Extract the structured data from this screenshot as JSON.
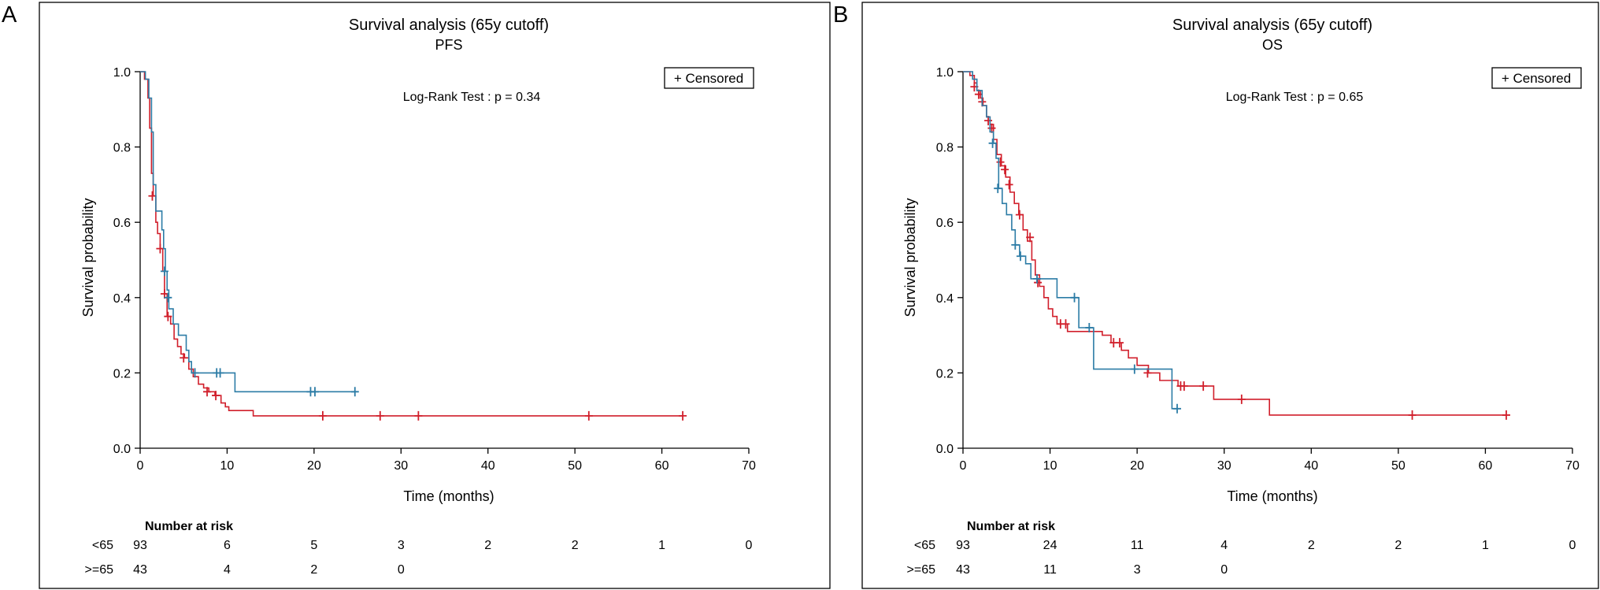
{
  "colors": {
    "under65": "#d11f2b",
    "over65": "#2c7ca6",
    "axis": "#000000"
  },
  "chart_data": [
    {
      "panel_letter": "A",
      "type": "line",
      "title": "Survival analysis (65y cutoff)",
      "subtitle": "PFS",
      "xlabel": "Time (months)",
      "ylabel": "Survival probability",
      "xlim": [
        0,
        70
      ],
      "ylim": [
        0,
        1
      ],
      "xticks": [
        "0",
        "10",
        "20",
        "30",
        "40",
        "50",
        "60",
        "70"
      ],
      "yticks": [
        "0.0",
        "0.2",
        "0.4",
        "0.6",
        "0.8",
        "1.0"
      ],
      "legend": "+ Censored",
      "annotation": "Log-Rank Test : p = 0.34",
      "series": [
        {
          "name": "<65",
          "color": "#d11f2b",
          "steps": [
            [
              0,
              1.0
            ],
            [
              0.5,
              0.98
            ],
            [
              0.9,
              0.93
            ],
            [
              1.1,
              0.85
            ],
            [
              1.3,
              0.73
            ],
            [
              1.5,
              0.67
            ],
            [
              1.8,
              0.6
            ],
            [
              2.0,
              0.57
            ],
            [
              2.3,
              0.53
            ],
            [
              2.6,
              0.47
            ],
            [
              2.8,
              0.41
            ],
            [
              3.1,
              0.35
            ],
            [
              3.5,
              0.33
            ],
            [
              3.9,
              0.29
            ],
            [
              4.3,
              0.27
            ],
            [
              4.7,
              0.25
            ],
            [
              5.1,
              0.24
            ],
            [
              5.6,
              0.21
            ],
            [
              6.1,
              0.19
            ],
            [
              6.7,
              0.17
            ],
            [
              7.3,
              0.16
            ],
            [
              7.9,
              0.15
            ],
            [
              8.6,
              0.14
            ],
            [
              9.3,
              0.12
            ],
            [
              9.8,
              0.11
            ],
            [
              10.2,
              0.1
            ],
            [
              13.0,
              0.086
            ],
            [
              62.4,
              0.086
            ]
          ],
          "censored": [
            [
              1.4,
              0.67
            ],
            [
              2.3,
              0.53
            ],
            [
              2.8,
              0.41
            ],
            [
              3.2,
              0.35
            ],
            [
              5.0,
              0.24
            ],
            [
              7.7,
              0.15
            ],
            [
              8.7,
              0.14
            ],
            [
              21.0,
              0.086
            ],
            [
              27.6,
              0.086
            ],
            [
              32.0,
              0.086
            ],
            [
              51.6,
              0.086
            ],
            [
              62.4,
              0.086
            ]
          ]
        },
        {
          "name": ">=65",
          "color": "#2c7ca6",
          "steps": [
            [
              0,
              1.0
            ],
            [
              0.6,
              0.98
            ],
            [
              1.0,
              0.93
            ],
            [
              1.3,
              0.84
            ],
            [
              1.5,
              0.7
            ],
            [
              1.8,
              0.63
            ],
            [
              2.5,
              0.58
            ],
            [
              2.7,
              0.53
            ],
            [
              2.9,
              0.47
            ],
            [
              3.1,
              0.42
            ],
            [
              3.3,
              0.37
            ],
            [
              3.8,
              0.33
            ],
            [
              4.4,
              0.3
            ],
            [
              5.3,
              0.26
            ],
            [
              5.6,
              0.23
            ],
            [
              5.9,
              0.2
            ],
            [
              10.9,
              0.15
            ],
            [
              24.7,
              0.15
            ]
          ],
          "censored": [
            [
              2.8,
              0.47
            ],
            [
              3.2,
              0.4
            ],
            [
              6.3,
              0.2
            ],
            [
              8.8,
              0.2
            ],
            [
              9.2,
              0.2
            ],
            [
              19.6,
              0.15
            ],
            [
              20.1,
              0.15
            ],
            [
              24.7,
              0.15
            ]
          ]
        }
      ],
      "risk_table": {
        "title": "Number at risk",
        "rows": [
          {
            "label": "<65",
            "values": [
              "93",
              "6",
              "5",
              "3",
              "2",
              "2",
              "1",
              "0"
            ]
          },
          {
            "label": ">=65",
            "values": [
              "43",
              "4",
              "2",
              "0"
            ]
          }
        ]
      }
    },
    {
      "panel_letter": "B",
      "type": "line",
      "title": "Survival analysis (65y cutoff)",
      "subtitle": "OS",
      "xlabel": "Time (months)",
      "ylabel": "Survival probability",
      "xlim": [
        0,
        70
      ],
      "ylim": [
        0,
        1
      ],
      "xticks": [
        "0",
        "10",
        "20",
        "30",
        "40",
        "50",
        "60",
        "70"
      ],
      "yticks": [
        "0.0",
        "0.2",
        "0.4",
        "0.6",
        "0.8",
        "1.0"
      ],
      "legend": "+ Censored",
      "annotation": "Log-Rank Test : p = 0.65",
      "series": [
        {
          "name": "<65",
          "color": "#d11f2b",
          "steps": [
            [
              0,
              1.0
            ],
            [
              0.8,
              0.99
            ],
            [
              1.3,
              0.97
            ],
            [
              1.6,
              0.95
            ],
            [
              2.0,
              0.93
            ],
            [
              2.3,
              0.91
            ],
            [
              2.7,
              0.88
            ],
            [
              3.1,
              0.86
            ],
            [
              3.5,
              0.82
            ],
            [
              3.9,
              0.78
            ],
            [
              4.4,
              0.75
            ],
            [
              4.9,
              0.72
            ],
            [
              5.4,
              0.68
            ],
            [
              5.9,
              0.65
            ],
            [
              6.4,
              0.62
            ],
            [
              6.9,
              0.58
            ],
            [
              7.4,
              0.55
            ],
            [
              7.9,
              0.5
            ],
            [
              8.3,
              0.46
            ],
            [
              8.8,
              0.43
            ],
            [
              9.3,
              0.4
            ],
            [
              9.8,
              0.37
            ],
            [
              10.3,
              0.35
            ],
            [
              10.8,
              0.33
            ],
            [
              12.0,
              0.31
            ],
            [
              14.8,
              0.31
            ],
            [
              16.0,
              0.3
            ],
            [
              17.0,
              0.28
            ],
            [
              18.2,
              0.26
            ],
            [
              19.0,
              0.24
            ],
            [
              20.0,
              0.22
            ],
            [
              21.3,
              0.2
            ],
            [
              22.6,
              0.18
            ],
            [
              24.7,
              0.165
            ],
            [
              28.8,
              0.13
            ],
            [
              35.2,
              0.088
            ],
            [
              62.4,
              0.088
            ]
          ],
          "censored": [
            [
              1.3,
              0.96
            ],
            [
              1.8,
              0.94
            ],
            [
              2.2,
              0.92
            ],
            [
              2.9,
              0.87
            ],
            [
              3.3,
              0.85
            ],
            [
              4.3,
              0.76
            ],
            [
              4.8,
              0.74
            ],
            [
              5.3,
              0.7
            ],
            [
              6.5,
              0.62
            ],
            [
              7.7,
              0.56
            ],
            [
              8.6,
              0.44
            ],
            [
              11.2,
              0.33
            ],
            [
              11.8,
              0.33
            ],
            [
              17.3,
              0.28
            ],
            [
              18.0,
              0.28
            ],
            [
              21.2,
              0.2
            ],
            [
              25.0,
              0.165
            ],
            [
              25.4,
              0.165
            ],
            [
              27.6,
              0.165
            ],
            [
              32.0,
              0.13
            ],
            [
              51.6,
              0.088
            ],
            [
              62.4,
              0.088
            ]
          ]
        },
        {
          "name": ">=65",
          "color": "#2c7ca6",
          "steps": [
            [
              0,
              1.0
            ],
            [
              1.1,
              0.98
            ],
            [
              1.6,
              0.95
            ],
            [
              2.2,
              0.91
            ],
            [
              2.7,
              0.88
            ],
            [
              3.1,
              0.84
            ],
            [
              3.5,
              0.81
            ],
            [
              3.8,
              0.77
            ],
            [
              4.1,
              0.69
            ],
            [
              4.5,
              0.65
            ],
            [
              5.0,
              0.62
            ],
            [
              5.6,
              0.58
            ],
            [
              6.0,
              0.54
            ],
            [
              6.5,
              0.51
            ],
            [
              7.2,
              0.49
            ],
            [
              7.8,
              0.45
            ],
            [
              10.2,
              0.45
            ],
            [
              10.8,
              0.4
            ],
            [
              13.0,
              0.4
            ],
            [
              13.3,
              0.32
            ],
            [
              14.5,
              0.32
            ],
            [
              15.0,
              0.21
            ],
            [
              19.5,
              0.21
            ],
            [
              23.8,
              0.21
            ],
            [
              24.0,
              0.105
            ],
            [
              24.6,
              0.105
            ]
          ],
          "censored": [
            [
              3.4,
              0.81
            ],
            [
              4.0,
              0.69
            ],
            [
              6.0,
              0.54
            ],
            [
              6.6,
              0.51
            ],
            [
              8.5,
              0.45
            ],
            [
              12.8,
              0.4
            ],
            [
              14.5,
              0.32
            ],
            [
              19.7,
              0.21
            ],
            [
              24.6,
              0.105
            ]
          ]
        }
      ],
      "risk_table": {
        "title": "Number at risk",
        "rows": [
          {
            "label": "<65",
            "values": [
              "93",
              "24",
              "11",
              "4",
              "2",
              "2",
              "1",
              "0"
            ]
          },
          {
            "label": ">=65",
            "values": [
              "43",
              "11",
              "3",
              "0"
            ]
          }
        ]
      }
    }
  ]
}
